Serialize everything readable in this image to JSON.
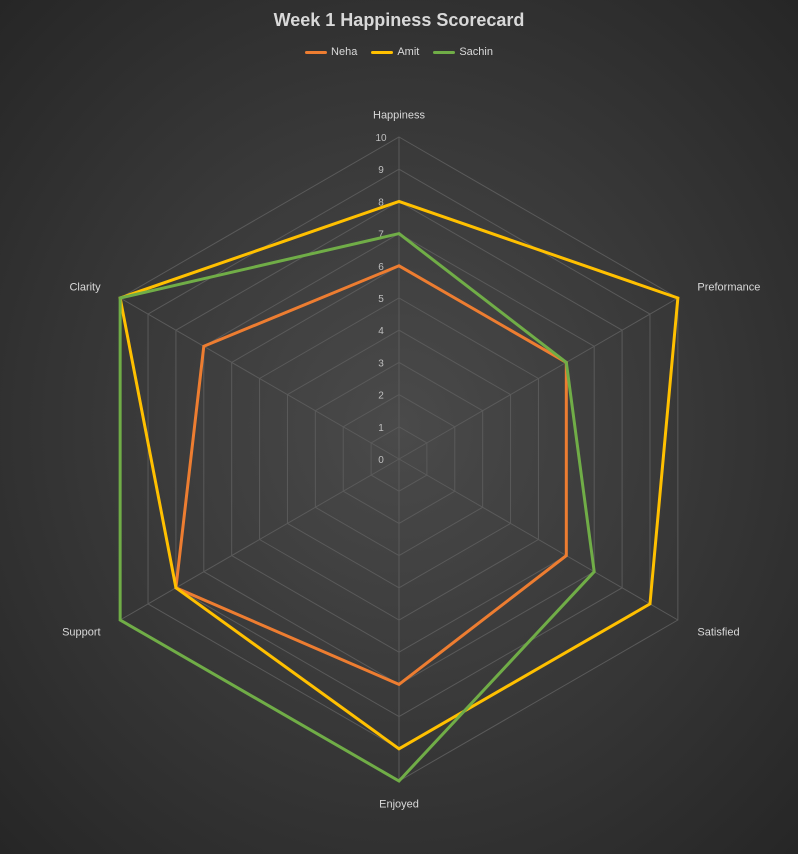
{
  "chart_data": {
    "type": "radar",
    "title": "Week 1 Happiness Scorecard",
    "categories": [
      "Happiness",
      "Preformance",
      "Satisfied",
      "Enjoyed",
      "Support",
      "Clarity"
    ],
    "radial_ticks": [
      "0",
      "1",
      "2",
      "3",
      "4",
      "5",
      "6",
      "7",
      "8",
      "9",
      "10"
    ],
    "range": [
      0,
      10
    ],
    "grid": true,
    "legend_position": "top",
    "series": [
      {
        "name": "Neha",
        "color": "#ed7d31",
        "values": [
          6,
          6,
          6,
          7,
          8,
          7
        ]
      },
      {
        "name": "Amit",
        "color": "#ffc000",
        "values": [
          8,
          10,
          9,
          9,
          8,
          10
        ]
      },
      {
        "name": "Sachin",
        "color": "#70ad47",
        "values": [
          7,
          6,
          7,
          10,
          10,
          10
        ]
      }
    ]
  }
}
